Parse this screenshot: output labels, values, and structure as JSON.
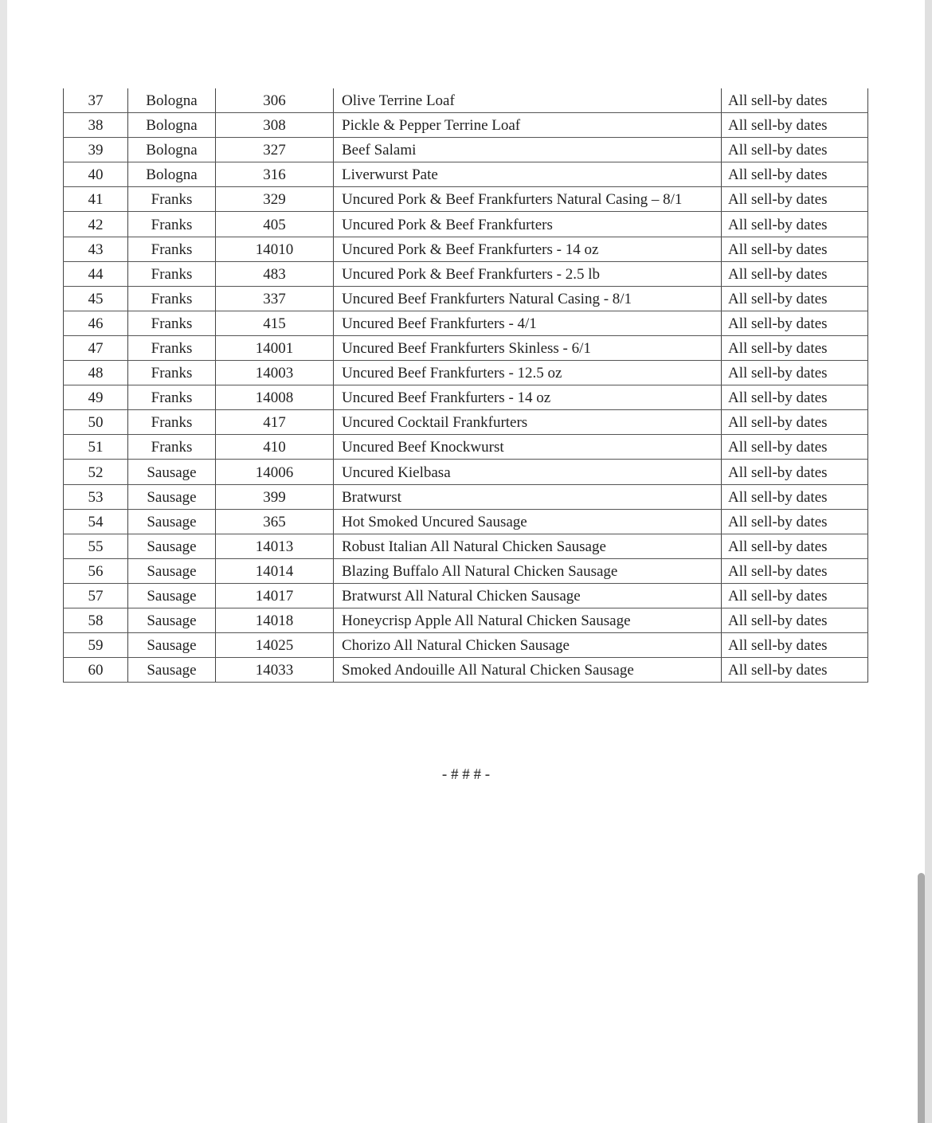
{
  "table": {
    "rows": [
      [
        "37",
        "Bologna",
        "306",
        "Olive Terrine Loaf",
        "All sell-by dates"
      ],
      [
        "38",
        "Bologna",
        "308",
        "Pickle & Pepper Terrine Loaf",
        "All sell-by dates"
      ],
      [
        "39",
        "Bologna",
        "327",
        "Beef Salami",
        "All sell-by dates"
      ],
      [
        "40",
        "Bologna",
        "316",
        "Liverwurst Pate",
        "All sell-by dates"
      ],
      [
        "41",
        "Franks",
        "329",
        "Uncured Pork & Beef Frankfurters Natural Casing – 8/1",
        "All sell-by dates"
      ],
      [
        "42",
        "Franks",
        "405",
        "Uncured Pork & Beef Frankfurters",
        "All sell-by dates"
      ],
      [
        "43",
        "Franks",
        "14010",
        "Uncured Pork & Beef Frankfurters - 14 oz",
        "All sell-by dates"
      ],
      [
        "44",
        "Franks",
        "483",
        "Uncured Pork & Beef Frankfurters - 2.5 lb",
        "All sell-by dates"
      ],
      [
        "45",
        "Franks",
        "337",
        "Uncured Beef Frankfurters Natural Casing - 8/1",
        "All sell-by dates"
      ],
      [
        "46",
        "Franks",
        "415",
        "Uncured Beef Frankfurters - 4/1",
        "All sell-by dates"
      ],
      [
        "47",
        "Franks",
        "14001",
        "Uncured Beef Frankfurters Skinless - 6/1",
        "All sell-by dates"
      ],
      [
        "48",
        "Franks",
        "14003",
        "Uncured Beef Frankfurters - 12.5 oz",
        "All sell-by dates"
      ],
      [
        "49",
        "Franks",
        "14008",
        "Uncured Beef Frankfurters - 14 oz",
        "All sell-by dates"
      ],
      [
        "50",
        "Franks",
        "417",
        "Uncured Cocktail Frankfurters",
        "All sell-by dates"
      ],
      [
        "51",
        "Franks",
        "410",
        "Uncured Beef Knockwurst",
        "All sell-by dates"
      ],
      [
        "52",
        "Sausage",
        "14006",
        "Uncured Kielbasa",
        "All sell-by dates"
      ],
      [
        "53",
        "Sausage",
        "399",
        "Bratwurst",
        "All sell-by dates"
      ],
      [
        "54",
        "Sausage",
        "365",
        "Hot Smoked Uncured Sausage",
        "All sell-by dates"
      ],
      [
        "55",
        "Sausage",
        "14013",
        "Robust Italian All Natural Chicken Sausage",
        "All sell-by dates"
      ],
      [
        "56",
        "Sausage",
        "14014",
        "Blazing Buffalo All Natural Chicken Sausage",
        "All sell-by dates"
      ],
      [
        "57",
        "Sausage",
        "14017",
        "Bratwurst All Natural Chicken Sausage",
        "All sell-by dates"
      ],
      [
        "58",
        "Sausage",
        "14018",
        "Honeycrisp Apple All Natural Chicken Sausage",
        "All sell-by dates"
      ],
      [
        "59",
        "Sausage",
        "14025",
        "Chorizo All Natural Chicken Sausage",
        "All sell-by dates"
      ],
      [
        "60",
        "Sausage",
        "14033",
        "Smoked Andouille All Natural Chicken Sausage",
        "All sell-by dates"
      ]
    ]
  },
  "end_mark": "- # # # -"
}
